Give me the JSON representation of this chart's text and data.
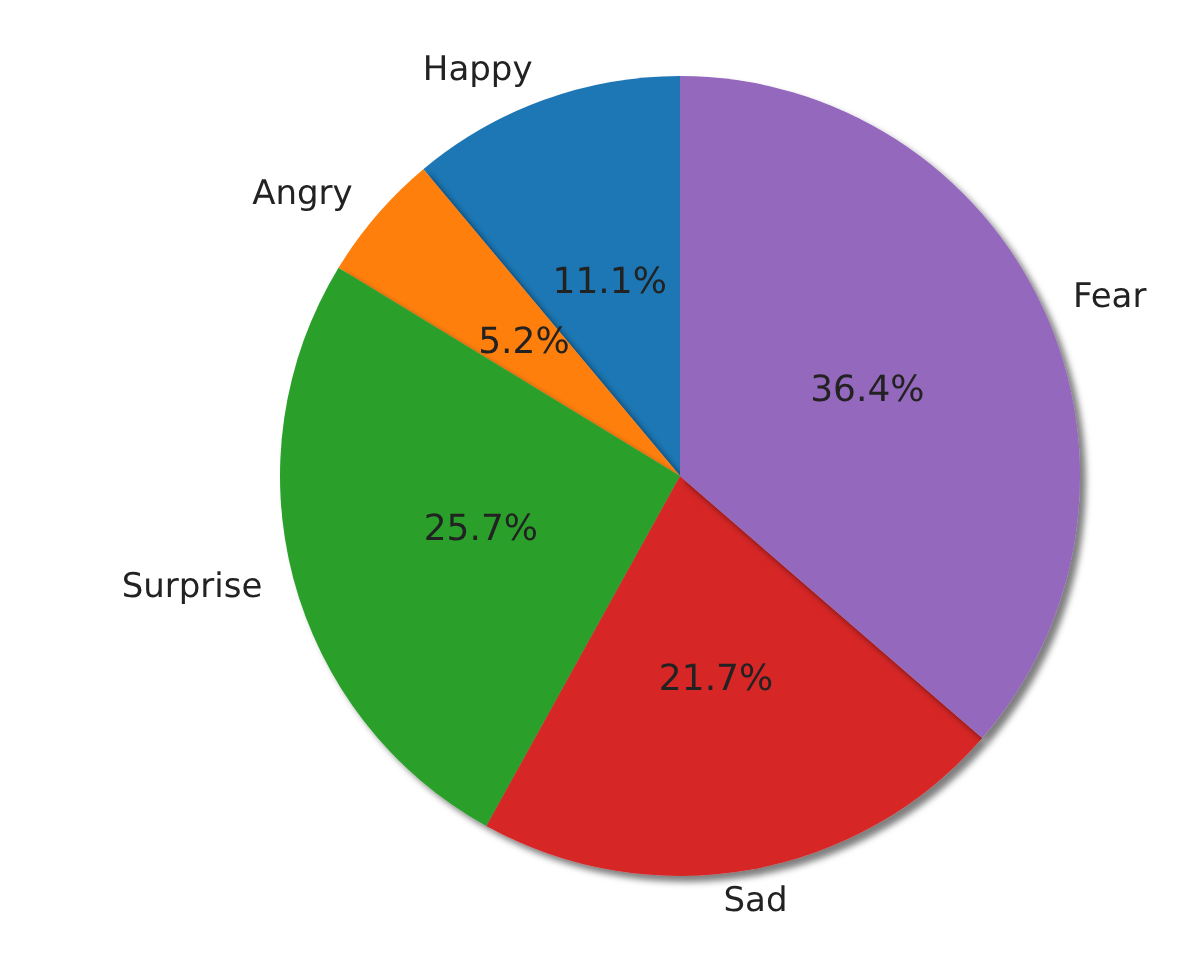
{
  "chart_data": {
    "type": "pie",
    "categories": [
      "Happy",
      "Angry",
      "Surprise",
      "Sad",
      "Fear"
    ],
    "values": [
      11.1,
      5.2,
      25.7,
      21.7,
      36.4
    ],
    "colors": [
      "#1f77b4",
      "#ff7f0e",
      "#2ca02c",
      "#d62728",
      "#9467bd"
    ],
    "value_labels": [
      "11.1%",
      "5.2%",
      "25.7%",
      "21.7%",
      "36.4%"
    ]
  }
}
